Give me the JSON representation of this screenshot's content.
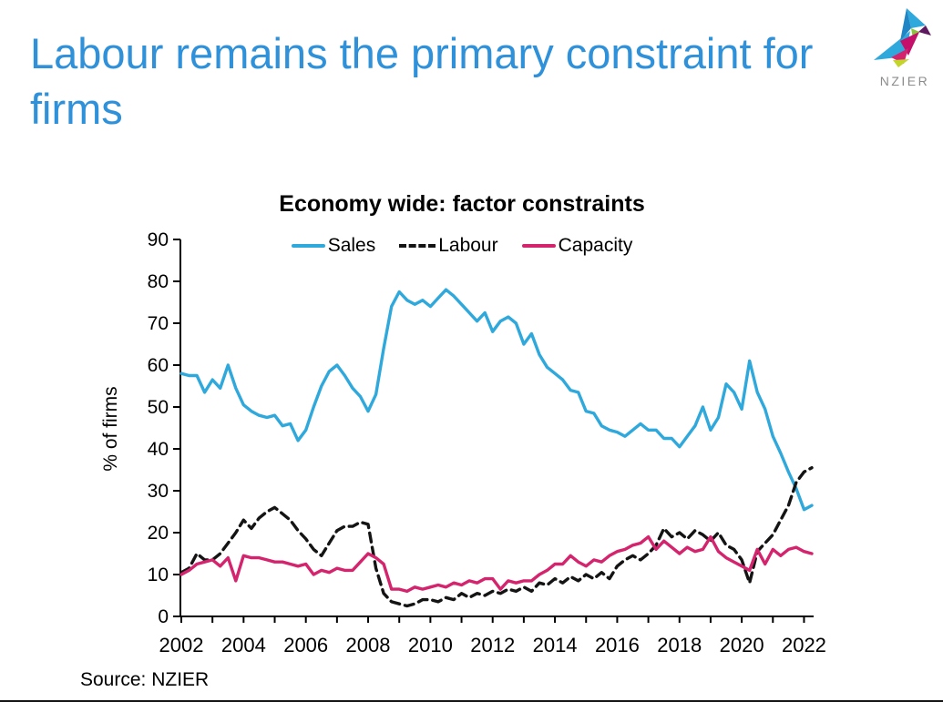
{
  "header": {
    "title": "Labour remains the primary constraint for firms",
    "title_color": "#2E91D9",
    "logo_text": "NZIER"
  },
  "footer": {
    "source": "Source: NZIER"
  },
  "chart_data": {
    "type": "line",
    "title": "Economy wide: factor constraints",
    "xlabel": "",
    "ylabel": "% of firms",
    "ylim": [
      0,
      90
    ],
    "ytick_step": 10,
    "grid": false,
    "legend_position": "top-center",
    "x_frequency": "quarterly",
    "x_range": "2002Q1-2022Q2",
    "x_tick_labels": [
      "2002",
      "2004",
      "2006",
      "2008",
      "2010",
      "2012",
      "2014",
      "2016",
      "2018",
      "2020",
      "2022"
    ],
    "series": [
      {
        "name": "Sales",
        "color": "#2FA8DC",
        "style": "solid",
        "values": [
          58,
          57.5,
          57.5,
          53.5,
          56.5,
          54.5,
          60,
          54.5,
          50.5,
          49,
          48,
          47.5,
          48,
          45.5,
          46,
          42,
          44.5,
          50,
          55,
          58.5,
          60,
          57.5,
          54.5,
          52.5,
          49,
          53,
          64,
          74,
          77.5,
          75.5,
          74.5,
          75.5,
          74,
          76,
          78,
          76.5,
          74.5,
          72.5,
          70.5,
          72.5,
          68,
          70.5,
          71.5,
          70,
          65,
          67.5,
          62.5,
          59.5,
          58,
          56.5,
          54,
          53.5,
          49,
          48.5,
          45.5,
          44.5,
          44,
          43,
          44.5,
          46,
          44.5,
          44.5,
          42.5,
          42.5,
          40.5,
          43,
          45.5,
          50,
          44.5,
          47.5,
          55.5,
          53.5,
          49.5,
          61,
          53.5,
          49.5,
          43,
          39,
          34.5,
          30.5,
          25.5,
          26.5
        ]
      },
      {
        "name": "Labour",
        "color": "#141414",
        "style": "dashed",
        "values": [
          10.5,
          11.5,
          15,
          13.5,
          13.5,
          15,
          17.5,
          20,
          23,
          21,
          23.5,
          25,
          26,
          24.5,
          23,
          20.5,
          18.5,
          16,
          14.5,
          17.5,
          20.5,
          21.5,
          21.5,
          22.5,
          22,
          11.5,
          5.5,
          3.5,
          3,
          2.5,
          3,
          4,
          4,
          3.5,
          4.5,
          4,
          5.5,
          4.5,
          5.5,
          5,
          6,
          5.5,
          6.5,
          6,
          7,
          6,
          8,
          7.5,
          9,
          8,
          9.5,
          8.5,
          10,
          9,
          10.5,
          9,
          12,
          13.5,
          14.5,
          13.5,
          15,
          17,
          21,
          19,
          20,
          18.5,
          20.5,
          19.5,
          18,
          20,
          17,
          16,
          13.5,
          8,
          15.5,
          17.5,
          19.5,
          23,
          26.5,
          32,
          34.5,
          35.5
        ]
      },
      {
        "name": "Capacity",
        "color": "#D4246D",
        "style": "solid",
        "values": [
          10,
          11,
          12.5,
          13,
          13.5,
          12,
          14,
          8.5,
          14.5,
          14,
          14,
          13.5,
          13,
          13,
          12.5,
          12,
          12.5,
          10,
          11,
          10.5,
          11.5,
          11,
          11,
          13,
          15,
          14,
          12.5,
          6.5,
          6.5,
          6,
          7,
          6.5,
          7,
          7.5,
          7,
          8,
          7.5,
          8.5,
          8,
          9,
          9,
          6.5,
          8.5,
          8,
          8.5,
          8.5,
          10,
          11,
          12.5,
          12.5,
          14.5,
          13,
          12,
          13.5,
          13,
          14.5,
          15.5,
          16,
          17,
          17.5,
          19,
          16,
          18,
          16.5,
          15,
          16.5,
          15.5,
          16,
          19,
          15.5,
          14,
          13,
          12,
          11,
          16,
          12.5,
          16,
          14.5,
          16,
          16.5,
          15.5,
          15
        ]
      }
    ]
  }
}
